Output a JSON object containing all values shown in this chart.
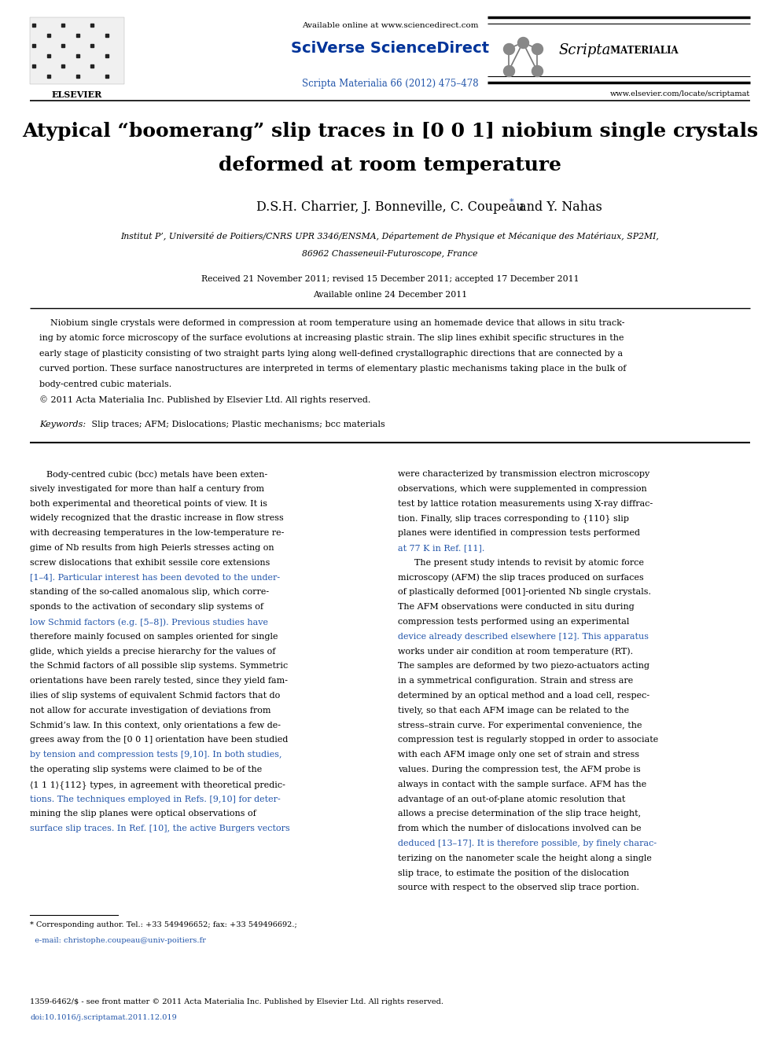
{
  "page_width": 9.92,
  "page_height": 13.23,
  "bg_color": "#ffffff",
  "header_available_online": "Available online at www.sciencedirect.com",
  "header_sciverse": "SciVerse ScienceDirect",
  "header_journal_ref": "Scripta Materialia 66 (2012) 475–478",
  "header_journal_url": "www.elsevier.com/locate/scriptamat",
  "elsevier_text": "ELSEVIER",
  "title_line1": "Atypical “boomerang” slip traces in [0 0 1] niobium single crystals",
  "title_line2": "deformed at room temperature",
  "authors_part1": "D.S.H. Charrier, J. Bonneville, C. Coupeau",
  "authors_part2": " and Y. Nahas",
  "affiliation_line1": "Institut P’, Université de Poitiers/CNRS UPR 3346/ENSMA, Département de Physique et Mécanique des Matériaux, SP2MI,",
  "affiliation_line2": "86962 Chasseneuil-Futuroscope, France",
  "received": "Received 21 November 2011; revised 15 December 2011; accepted 17 December 2011",
  "available_online_date": "Available online 24 December 2011",
  "abstract_indent": "    Niobium single crystals were deformed in compression at room temperature using an homemade device that allows in situ track-",
  "abstract_line2": "ing by atomic force microscopy of the surface evolutions at increasing plastic strain. The slip lines exhibit specific structures in the",
  "abstract_line3": "early stage of plasticity consisting of two straight parts lying along well-defined crystallographic directions that are connected by a",
  "abstract_line4": "curved portion. These surface nanostructures are interpreted in terms of elementary plastic mechanisms taking place in the bulk of",
  "abstract_line5": "body-centred cubic materials.",
  "abstract_copyright": "© 2011 Acta Materialia Inc. Published by Elsevier Ltd. All rights reserved.",
  "keywords_label": "Keywords:",
  "keywords_text": " Slip traces; AFM; Dislocations; Plastic mechanisms; bcc materials",
  "col1_lines": [
    "      Body-centred cubic (bcc) metals have been exten-",
    "sively investigated for more than half a century from",
    "both experimental and theoretical points of view. It is",
    "widely recognized that the drastic increase in flow stress",
    "with decreasing temperatures in the low-temperature re-",
    "gime of Nb results from high Peierls stresses acting on",
    "screw dislocations that exhibit sessile core extensions",
    "[1–4]. Particular interest has been devoted to the under-",
    "standing of the so-called anomalous slip, which corre-",
    "sponds to the activation of secondary slip systems of",
    "low Schmid factors (e.g. [5–8]). Previous studies have",
    "therefore mainly focused on samples oriented for single",
    "glide, which yields a precise hierarchy for the values of",
    "the Schmid factors of all possible slip systems. Symmetric",
    "orientations have been rarely tested, since they yield fam-",
    "ilies of slip systems of equivalent Schmid factors that do",
    "not allow for accurate investigation of deviations from",
    "Schmid’s law. In this context, only orientations a few de-",
    "grees away from the [0 0 1] orientation have been studied",
    "by tension and compression tests [9,10]. In both studies,",
    "the operating slip systems were claimed to be of the",
    "⟨1 1 1⟩{112} types, in agreement with theoretical predic-",
    "tions. The techniques employed in Refs. [9,10] for deter-",
    "mining the slip planes were optical observations of",
    "surface slip traces. In Ref. [10], the active Burgers vectors"
  ],
  "col1_link_lines": [
    7,
    10,
    19,
    22,
    24
  ],
  "col2_lines": [
    "were characterized by transmission electron microscopy",
    "observations, which were supplemented in compression",
    "test by lattice rotation measurements using X-ray diffrac-",
    "tion. Finally, slip traces corresponding to {110} slip",
    "planes were identified in compression tests performed",
    "at 77 K in Ref. [11].",
    "      The present study intends to revisit by atomic force",
    "microscopy (AFM) the slip traces produced on surfaces",
    "of plastically deformed [001]-oriented Nb single crystals.",
    "The AFM observations were conducted in situ during",
    "compression tests performed using an experimental",
    "device already described elsewhere [12]. This apparatus",
    "works under air condition at room temperature (RT).",
    "The samples are deformed by two piezo-actuators acting",
    "in a symmetrical configuration. Strain and stress are",
    "determined by an optical method and a load cell, respec-",
    "tively, so that each AFM image can be related to the",
    "stress–strain curve. For experimental convenience, the",
    "compression test is regularly stopped in order to associate",
    "with each AFM image only one set of strain and stress",
    "values. During the compression test, the AFM probe is",
    "always in contact with the sample surface. AFM has the",
    "advantage of an out-of-plane atomic resolution that",
    "allows a precise determination of the slip trace height,",
    "from which the number of dislocations involved can be",
    "deduced [13–17]. It is therefore possible, by finely charac-",
    "terizing on the nanometer scale the height along a single",
    "slip trace, to estimate the position of the dislocation",
    "source with respect to the observed slip trace portion."
  ],
  "col2_link_lines": [
    5,
    11,
    25
  ],
  "footnote_line1": "* Corresponding author. Tel.: +33 549496652; fax: +33 549496692.;",
  "footnote_line2": "  e-mail: christophe.coupeau@univ-poitiers.fr",
  "footer_left": "1359-6462/$ - see front matter © 2011 Acta Materialia Inc. Published by Elsevier Ltd. All rights reserved.",
  "footer_doi": "doi:10.1016/j.scriptamat.2011.12.019",
  "link_color": "#2255aa",
  "text_color": "#000000",
  "scripta_italic": "Scripta",
  "scripta_caps": " MATERIALIA"
}
